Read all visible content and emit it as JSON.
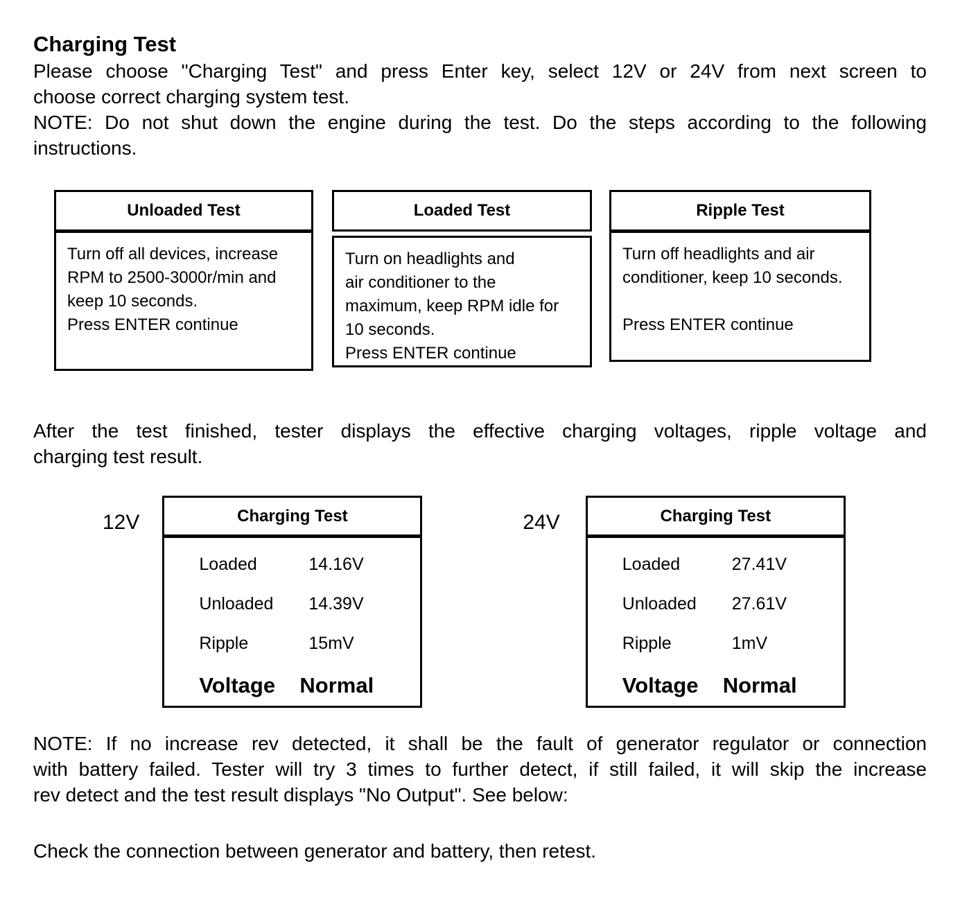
{
  "page": {
    "title": "Charging Test",
    "intro_lines": [
      "Please choose \"Charging Test\" and press Enter key, select 12V or 24V from next screen to",
      "choose correct charging system test."
    ],
    "note_top_lines": [
      "NOTE: Do not shut down the engine during the test. Do the steps according to the following",
      "instructions."
    ],
    "after_lines": [
      "After the test finished, tester displays the effective charging voltages, ripple voltage and",
      "charging test result."
    ],
    "note_bottom_lines": [
      "NOTE: If no increase rev detected, it shall be the fault of generator regulator or connection",
      "with battery failed. Tester will try 3 times to further detect, if still failed, it will skip the increase",
      "rev detect and the test result displays \"No Output\". See below:"
    ],
    "check_text": "Check the connection between generator and battery, then retest."
  },
  "test_boxes": [
    {
      "title": "Unloaded Test",
      "lines": [
        "Turn off all devices, increase",
        "RPM to 2500-3000r/min and",
        "keep 10 seconds.",
        "Press ENTER continue"
      ]
    },
    {
      "title": "Loaded Test",
      "lines": [
        "Turn on headlights and",
        "air conditioner to the",
        "maximum, keep RPM idle for",
        "10 seconds.",
        "Press ENTER continue"
      ]
    },
    {
      "title": "Ripple Test",
      "lines": [
        "Turn off headlights and air",
        "conditioner, keep 10 seconds.",
        "",
        "Press ENTER continue"
      ]
    }
  ],
  "results": [
    {
      "label": "12V",
      "screen_title": "Charging Test",
      "rows": [
        {
          "name": "Loaded",
          "value": "14.16V"
        },
        {
          "name": "Unloaded",
          "value": "14.39V"
        },
        {
          "name": "Ripple",
          "value": "15mV"
        }
      ],
      "status_name": "Voltage",
      "status_value": "Normal"
    },
    {
      "label": "24V",
      "screen_title": "Charging Test",
      "rows": [
        {
          "name": "Loaded",
          "value": "27.41V"
        },
        {
          "name": "Unloaded",
          "value": "27.61V"
        },
        {
          "name": "Ripple",
          "value": "1mV"
        }
      ],
      "status_name": "Voltage",
      "status_value": "Normal"
    }
  ]
}
